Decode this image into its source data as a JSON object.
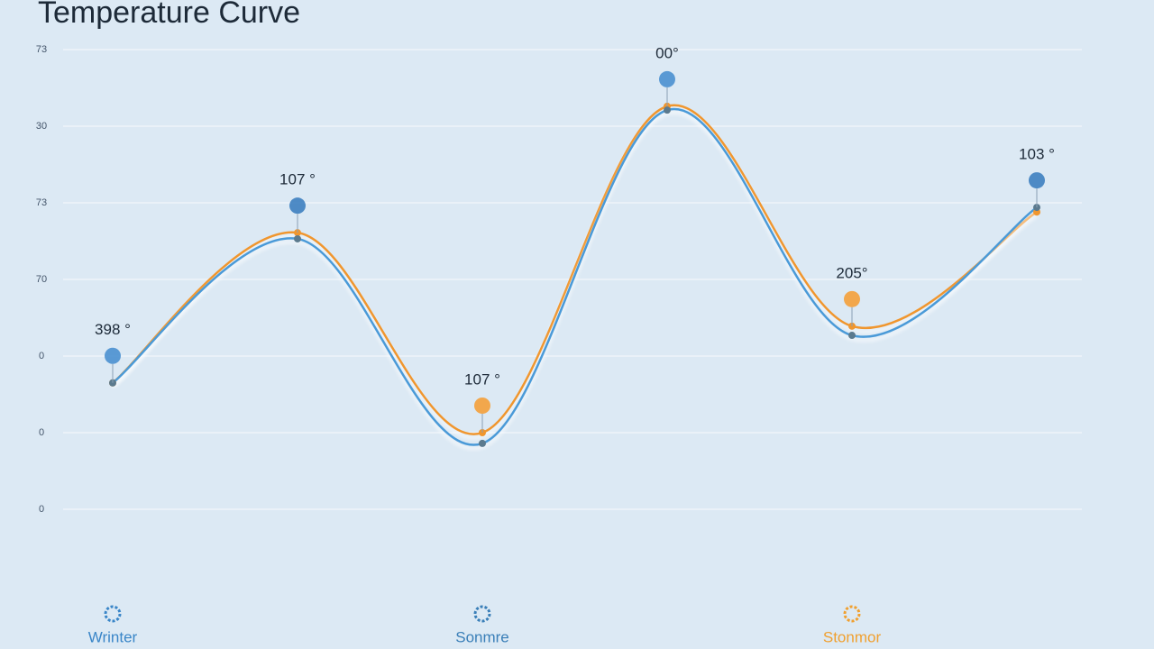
{
  "chart_data": {
    "type": "line",
    "title": "Temperature Curve",
    "categories": [
      "Wrinter",
      null,
      "Sonmre",
      null,
      "Stonmor",
      null
    ],
    "annotations": [
      "398 °",
      "107 °",
      "107 °",
      "00°",
      "205°",
      "103 °"
    ],
    "series": [
      {
        "color": "#f0962e",
        "values": [
          2.65,
          4.61,
          2.0,
          6.26,
          3.39,
          4.88
        ]
      },
      {
        "color": "#4a9ad8",
        "values": [
          2.65,
          4.53,
          1.86,
          6.21,
          3.27,
          4.94
        ]
      }
    ],
    "ylim": [
      0,
      7
    ],
    "yticks": [
      {
        "value": 1,
        "label": "0"
      },
      {
        "value": 2,
        "label": "0"
      },
      {
        "value": 3,
        "label": "0"
      },
      {
        "value": 4,
        "label": "70"
      },
      {
        "value": 5,
        "label": "73"
      },
      {
        "value": 6,
        "label": "30"
      },
      {
        "value": 7,
        "label": "73"
      }
    ],
    "grid": true,
    "category_colors": [
      "#3a86c8",
      null,
      "#3a7fb8",
      null,
      "#f0a030",
      null
    ]
  }
}
